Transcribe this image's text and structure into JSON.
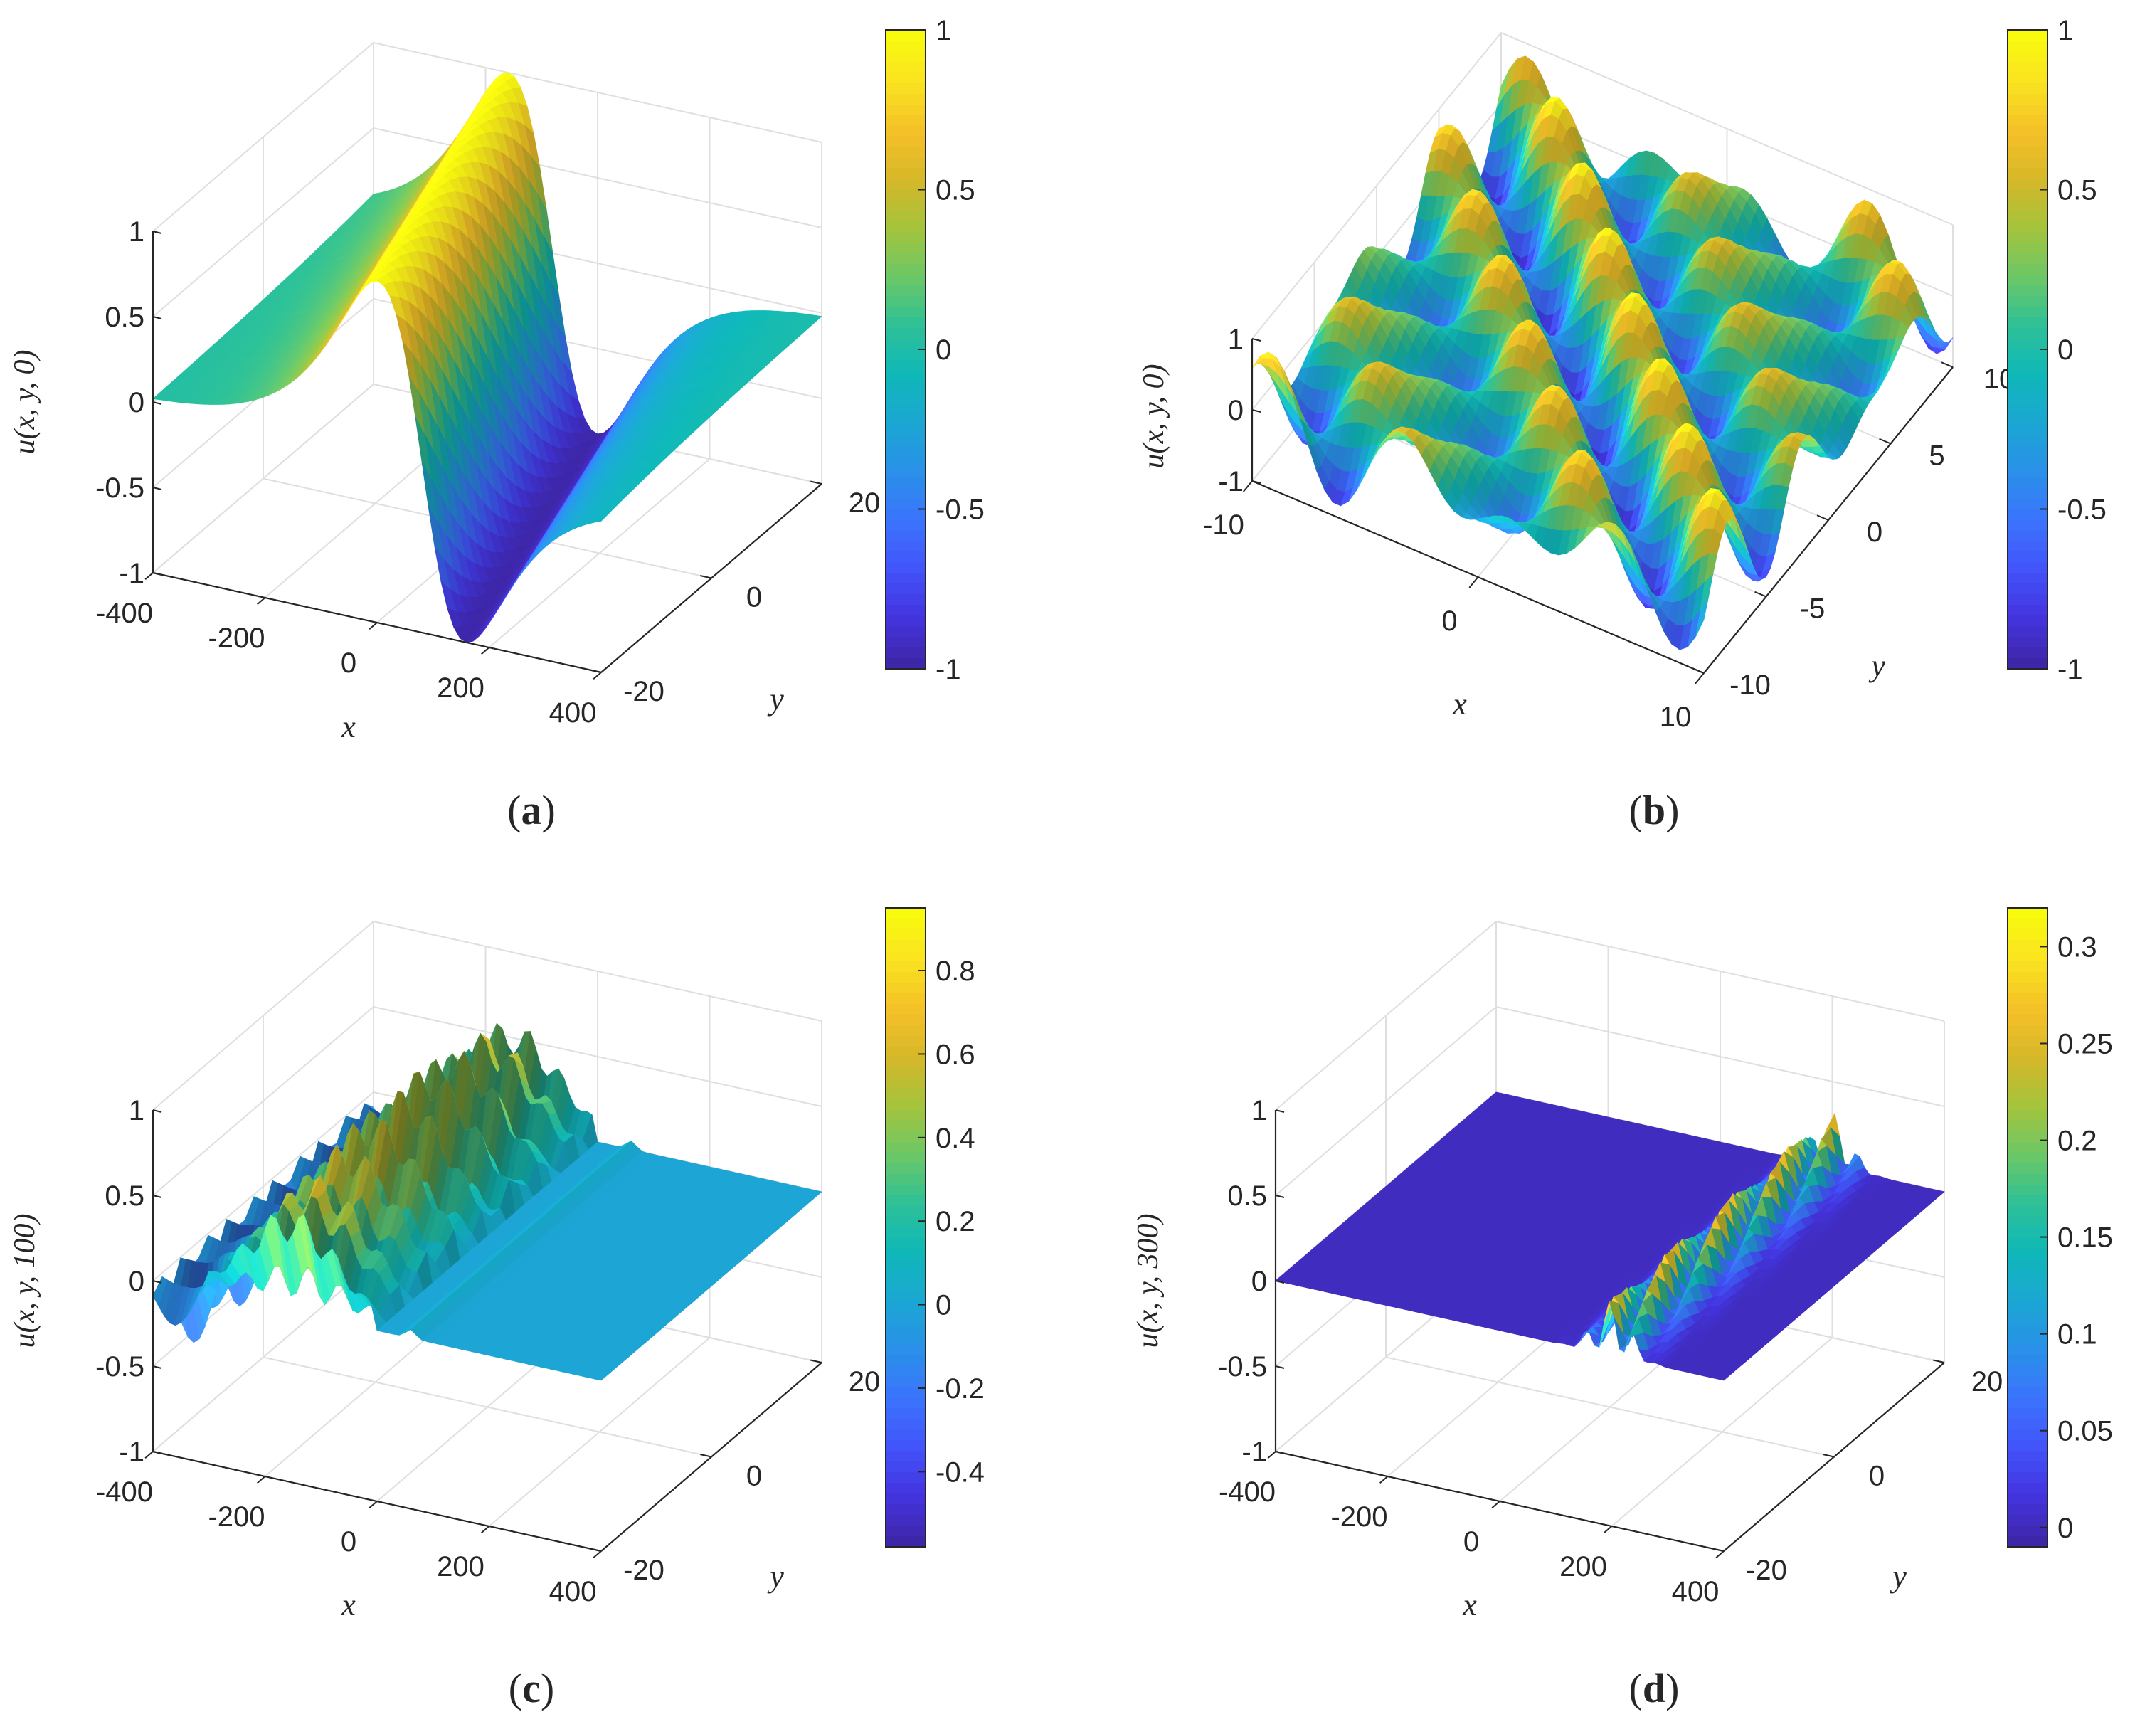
{
  "colors": {
    "parula": [
      "#3e26a8",
      "#4435e1",
      "#4256fa",
      "#3a75fc",
      "#2991e8",
      "#1ba7d3",
      "#0fb8b8",
      "#2fc196",
      "#6cc766",
      "#a3c33c",
      "#d6b829",
      "#f5c028",
      "#fae221",
      "#f9fb0e"
    ],
    "axis": "#262626",
    "grid": "#dfdfdf"
  },
  "chart_data": [
    {
      "id": "a",
      "type": "surface",
      "caption_letter": "a",
      "zlabel": "u(x, y, 0)",
      "xlabel": "x",
      "ylabel": "y",
      "xlim": [
        -400,
        400
      ],
      "ylim": [
        -20,
        20
      ],
      "zlim": [
        -1,
        1
      ],
      "xticks": [
        -400,
        -200,
        0,
        200,
        400
      ],
      "xtick_labels": [
        "-400",
        "-200",
        "0",
        "200",
        "400"
      ],
      "yticks": [
        -20,
        0,
        20
      ],
      "ytick_labels": [
        "-20",
        "0",
        "20"
      ],
      "zticks": [
        -1,
        -0.5,
        0,
        0.5,
        1
      ],
      "ztick_labels": [
        "-1",
        "-0.5",
        "0",
        "0.5",
        "1"
      ],
      "colorbar": {
        "range": [
          -1,
          1
        ],
        "ticks": [
          -1,
          -0.5,
          0,
          0.5,
          1
        ],
        "tick_labels": [
          "-1",
          "-0.5",
          "0",
          "0.5",
          "1"
        ]
      },
      "surface": {
        "kind": "kink_a"
      }
    },
    {
      "id": "b",
      "type": "surface",
      "caption_letter": "b",
      "zlabel": "u(x, y, 0)",
      "xlabel": "x",
      "ylabel": "y",
      "xlim": [
        -10,
        10
      ],
      "ylim": [
        -10,
        10
      ],
      "zlim": [
        -1,
        1
      ],
      "xticks": [
        -10,
        0,
        10
      ],
      "xtick_labels": [
        "-10",
        "0",
        "10"
      ],
      "yticks": [
        -10,
        -5,
        0,
        5,
        10
      ],
      "ytick_labels": [
        "-10",
        "-5",
        "0",
        "5",
        "10"
      ],
      "zticks": [
        -1,
        0,
        1
      ],
      "ztick_labels": [
        "-1",
        "0",
        "1"
      ],
      "colorbar": {
        "range": [
          -1,
          1
        ],
        "ticks": [
          -1,
          -0.5,
          0,
          0.5,
          1
        ],
        "tick_labels": [
          "-1",
          "-0.5",
          "0",
          "0.5",
          "1"
        ]
      },
      "surface": {
        "kind": "egg_b"
      }
    },
    {
      "id": "c",
      "type": "surface",
      "caption_letter": "c",
      "zlabel": "u(x, y, 100)",
      "xlabel": "x",
      "ylabel": "y",
      "xlim": [
        -400,
        400
      ],
      "ylim": [
        -20,
        20
      ],
      "zlim": [
        -1,
        1
      ],
      "xticks": [
        -400,
        -200,
        0,
        200,
        400
      ],
      "xtick_labels": [
        "-400",
        "-200",
        "0",
        "200",
        "400"
      ],
      "yticks": [
        -20,
        0,
        20
      ],
      "ytick_labels": [
        "-20",
        "0",
        "20"
      ],
      "zticks": [
        -1,
        -0.5,
        0,
        0.5,
        1
      ],
      "ztick_labels": [
        "-1",
        "-0.5",
        "0",
        "0.5",
        "1"
      ],
      "colorbar": {
        "range": [
          -0.58,
          0.95
        ],
        "ticks": [
          -0.4,
          -0.2,
          0,
          0.2,
          0.4,
          0.6,
          0.8
        ],
        "tick_labels": [
          "-0.4",
          "-0.2",
          "0",
          "0.2",
          "0.4",
          "0.6",
          "0.8"
        ]
      },
      "surface": {
        "kind": "waves_c"
      }
    },
    {
      "id": "d",
      "type": "surface",
      "caption_letter": "d",
      "zlabel": "u(x, y, 300)",
      "xlabel": "x",
      "ylabel": "y",
      "xlim": [
        -400,
        400
      ],
      "ylim": [
        -20,
        20
      ],
      "zlim": [
        -1,
        1
      ],
      "xticks": [
        -400,
        -200,
        0,
        200,
        400
      ],
      "xtick_labels": [
        "-400",
        "-200",
        "0",
        "200",
        "400"
      ],
      "yticks": [
        -20,
        0,
        20
      ],
      "ytick_labels": [
        "-20",
        "0",
        "20"
      ],
      "zticks": [
        -1,
        -0.5,
        0,
        0.5,
        1
      ],
      "ztick_labels": [
        "-1",
        "-0.5",
        "0",
        "0.5",
        "1"
      ],
      "colorbar": {
        "range": [
          -0.01,
          0.32
        ],
        "ticks": [
          0,
          0.05,
          0.1,
          0.15,
          0.2,
          0.25,
          0.3
        ],
        "tick_labels": [
          "0",
          "0.05",
          "0.1",
          "0.15",
          "0.2",
          "0.25",
          "0.3"
        ]
      },
      "surface": {
        "kind": "band_d"
      }
    }
  ]
}
